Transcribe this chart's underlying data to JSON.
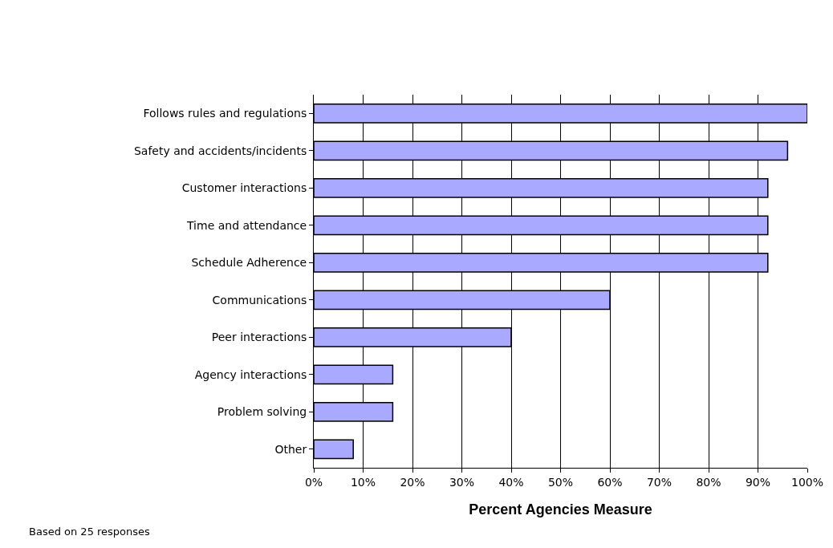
{
  "chart_data": {
    "type": "bar",
    "orientation": "horizontal",
    "xlabel": "Percent Agencies Measure",
    "categories": [
      "Follows rules and regulations",
      "Safety and accidents/incidents",
      "Customer interactions",
      "Time and attendance",
      "Schedule Adherence",
      "Communications",
      "Peer interactions",
      "Agency interactions",
      "Problem solving",
      "Other"
    ],
    "values": [
      100,
      96,
      92,
      92,
      92,
      60,
      40,
      16,
      16,
      8
    ],
    "color": "#a9a9ff",
    "xlim": [
      0,
      100
    ],
    "xticks": [
      {
        "value": 0,
        "label": "0%"
      },
      {
        "value": 10,
        "label": "10%"
      },
      {
        "value": 20,
        "label": "20%"
      },
      {
        "value": 30,
        "label": "30%"
      },
      {
        "value": 40,
        "label": "40%"
      },
      {
        "value": 50,
        "label": "50%"
      },
      {
        "value": 60,
        "label": "60%"
      },
      {
        "value": 70,
        "label": "70%"
      },
      {
        "value": 80,
        "label": "80%"
      },
      {
        "value": 90,
        "label": "90%"
      },
      {
        "value": 100,
        "label": "100%"
      }
    ],
    "grid": "x",
    "annotations": [
      "Based on 25 responses"
    ]
  }
}
